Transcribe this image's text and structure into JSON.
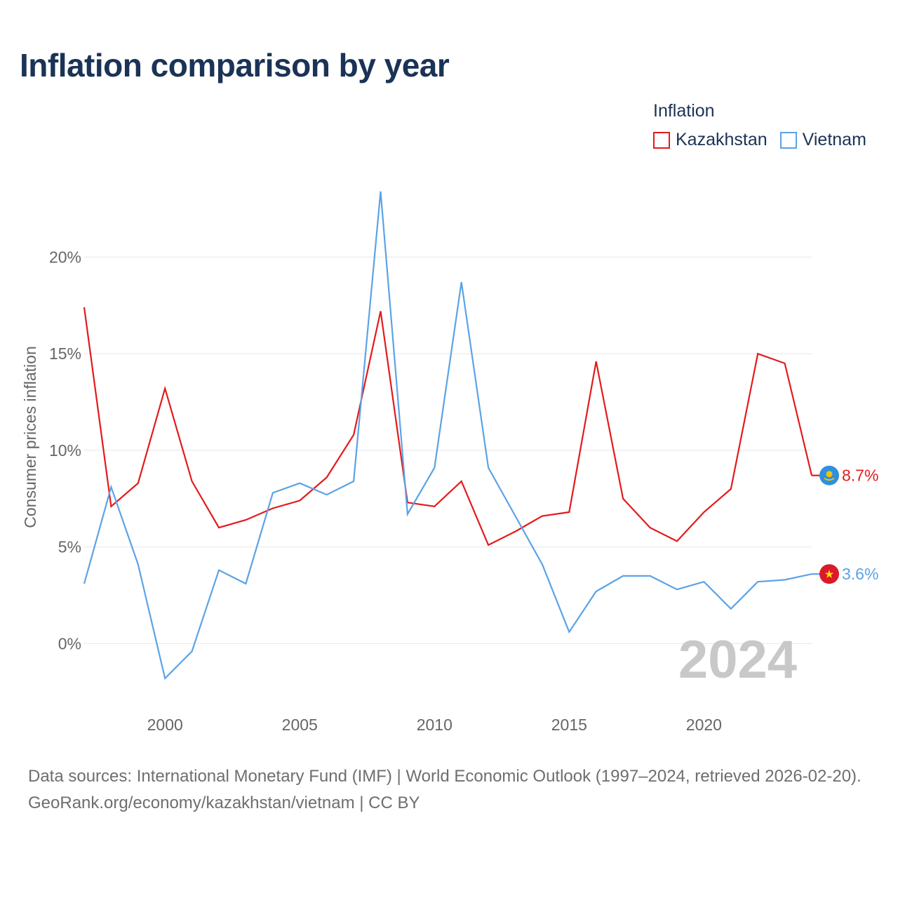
{
  "title": "Inflation comparison by year",
  "legend": {
    "title": "Inflation",
    "items": [
      {
        "label": "Kazakhstan",
        "color": "#e31a1c"
      },
      {
        "label": "Vietnam",
        "color": "#5ba3e6"
      }
    ]
  },
  "chart_data": {
    "type": "line",
    "title": "Inflation comparison by year",
    "xlabel": "",
    "ylabel": "Consumer prices inflation",
    "x": [
      1997,
      1998,
      1999,
      2000,
      2001,
      2002,
      2003,
      2004,
      2005,
      2006,
      2007,
      2008,
      2009,
      2010,
      2011,
      2012,
      2013,
      2014,
      2015,
      2016,
      2017,
      2018,
      2019,
      2020,
      2021,
      2022,
      2023,
      2024
    ],
    "xlim": [
      1997,
      2024
    ],
    "ylim": [
      -3,
      23.5
    ],
    "x_ticks": [
      2000,
      2005,
      2010,
      2015,
      2020
    ],
    "x_tick_labels": [
      "2000",
      "2005",
      "2010",
      "2015",
      "2020"
    ],
    "y_ticks": [
      0,
      5,
      10,
      15,
      20
    ],
    "y_tick_labels": [
      "0%",
      "5%",
      "10%",
      "15%",
      "20%"
    ],
    "grid": true,
    "legend_position": "top-right",
    "series": [
      {
        "name": "Kazakhstan",
        "color": "#e31a1c",
        "values": [
          17.4,
          7.1,
          8.3,
          13.2,
          8.4,
          6.0,
          6.4,
          7.0,
          7.4,
          8.6,
          10.8,
          17.2,
          7.3,
          7.1,
          8.4,
          5.1,
          5.8,
          6.6,
          6.8,
          14.6,
          7.5,
          6.0,
          5.3,
          6.8,
          8.0,
          15.0,
          14.5,
          8.7
        ],
        "end_label": "8.7%"
      },
      {
        "name": "Vietnam",
        "color": "#5ba3e6",
        "values": [
          3.1,
          8.1,
          4.1,
          -1.8,
          -0.4,
          3.8,
          3.1,
          7.8,
          8.3,
          7.7,
          8.4,
          23.4,
          6.7,
          9.1,
          18.7,
          9.1,
          6.6,
          4.1,
          0.6,
          2.7,
          3.5,
          3.5,
          2.8,
          3.2,
          1.8,
          3.2,
          3.3,
          3.6
        ],
        "end_label": "3.6%"
      }
    ],
    "year_watermark": "2024"
  },
  "footer": {
    "sources": "Data sources: International Monetary Fund (IMF) | World Economic Outlook (1997–2024, retrieved 2026-02-20).",
    "credit": "GeoRank.org/economy/kazakhstan/vietnam | CC BY"
  }
}
